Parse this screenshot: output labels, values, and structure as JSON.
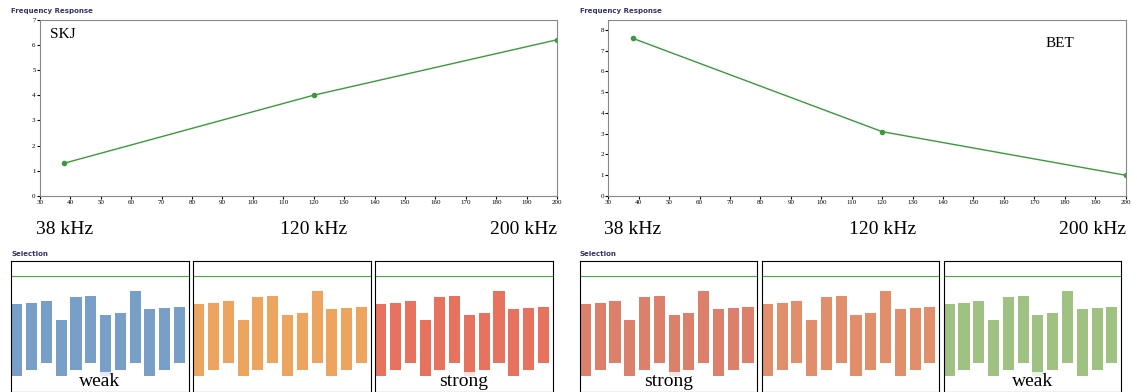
{
  "chart_data": [
    {
      "type": "line",
      "title": "Frequency Response",
      "subtitle": "Selection",
      "x": [
        38,
        120,
        200
      ],
      "values": [
        1.3,
        4.0,
        6.2
      ],
      "color": "#3a9a3a",
      "marker": "o",
      "xlim": [
        30,
        200
      ],
      "xticks": [
        30,
        40,
        50,
        60,
        70,
        80,
        90,
        100,
        110,
        120,
        130,
        140,
        150,
        160,
        170,
        180,
        190,
        200
      ],
      "ylim": [
        0,
        7
      ],
      "yticks": [
        0,
        1,
        2,
        3,
        4,
        5,
        6,
        7
      ],
      "grid": false,
      "annotations": {
        "species": "SKJ",
        "frequencies": [
          "38 kHz",
          "120 kHz",
          "200 kHz"
        ],
        "echogram": [
          "weak",
          "strong"
        ]
      }
    },
    {
      "type": "line",
      "title": "Frequency Response",
      "subtitle": "Selection",
      "x": [
        38,
        120,
        200
      ],
      "values": [
        7.6,
        3.1,
        1.0
      ],
      "color": "#3a9a3a",
      "marker": "o",
      "xlim": [
        30,
        200
      ],
      "xticks": [
        30,
        40,
        50,
        60,
        70,
        80,
        90,
        100,
        110,
        120,
        130,
        140,
        150,
        160,
        170,
        180,
        190,
        200
      ],
      "ylim": [
        0,
        8.5
      ],
      "yticks": [
        0,
        1,
        2,
        3,
        4,
        5,
        6,
        7,
        8
      ],
      "grid": false,
      "annotations": {
        "species": "BET",
        "frequencies": [
          "38 kHz",
          "120 kHz",
          "200 kHz"
        ],
        "echogram": [
          "strong",
          "weak"
        ]
      }
    }
  ]
}
